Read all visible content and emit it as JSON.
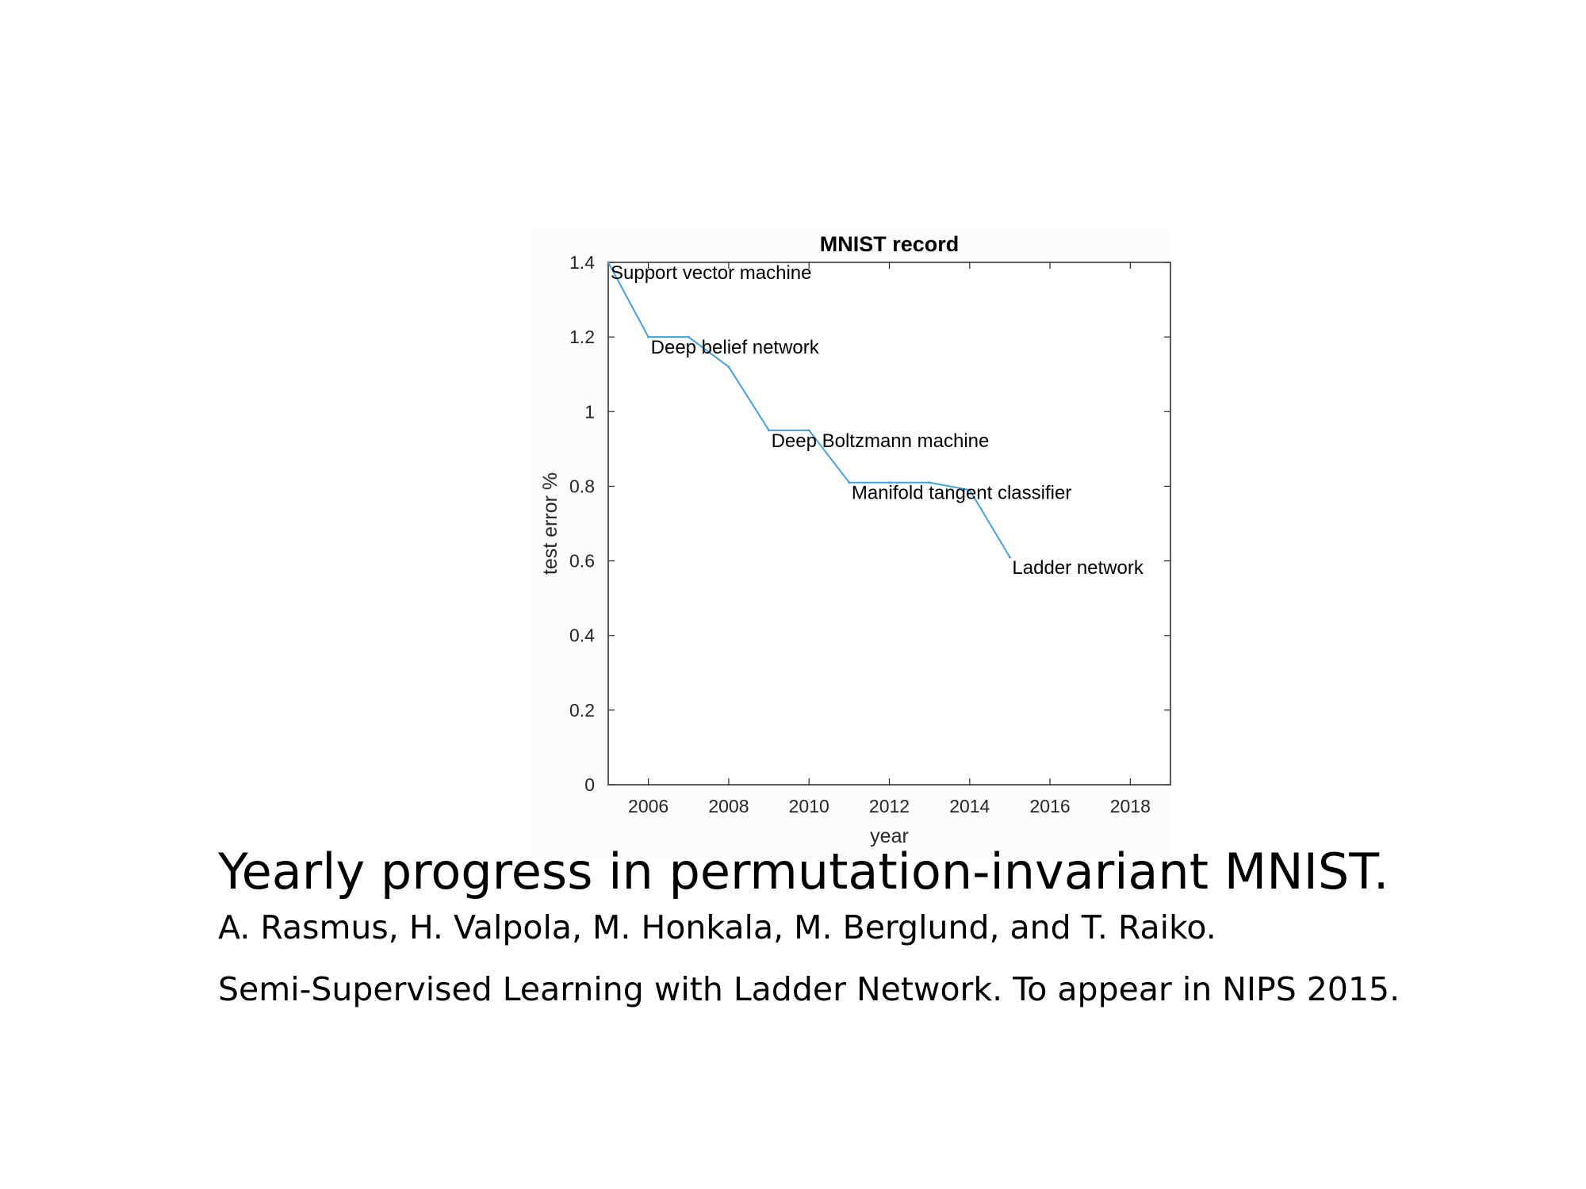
{
  "chart_data": {
    "type": "line",
    "title": "MNIST record",
    "xlabel": "year",
    "ylabel": "test error %",
    "xlim": [
      2005,
      2019
    ],
    "ylim": [
      0,
      1.4
    ],
    "xticks": [
      2006,
      2008,
      2010,
      2012,
      2014,
      2016,
      2018
    ],
    "yticks": [
      0,
      0.2,
      0.4,
      0.6,
      0.8,
      1,
      1.2,
      1.4
    ],
    "grid": false,
    "line_color": "#4a9fd6",
    "x": [
      2005,
      2006,
      2007,
      2008,
      2009,
      2010,
      2011,
      2012,
      2013,
      2014,
      2015
    ],
    "y": [
      1.4,
      1.2,
      1.2,
      1.12,
      0.95,
      0.95,
      0.81,
      0.81,
      0.81,
      0.79,
      0.61
    ],
    "annotations": [
      {
        "x": 2005,
        "y": 1.4,
        "text": "Support vector machine"
      },
      {
        "x": 2006,
        "y": 1.2,
        "text": "Deep belief network"
      },
      {
        "x": 2009,
        "y": 0.95,
        "text": "Deep Boltzmann machine"
      },
      {
        "x": 2011,
        "y": 0.81,
        "text": "Manifold tangent classifier"
      },
      {
        "x": 2015,
        "y": 0.61,
        "text": "Ladder network"
      }
    ]
  },
  "caption": {
    "title": "Yearly progress in permutation-invariant MNIST.",
    "authors": "A. Rasmus, H. Valpola, M. Honkala, M. Berglund, and T. Raiko.",
    "reference": "Semi-Supervised Learning with Ladder Network. To appear in NIPS 2015."
  }
}
